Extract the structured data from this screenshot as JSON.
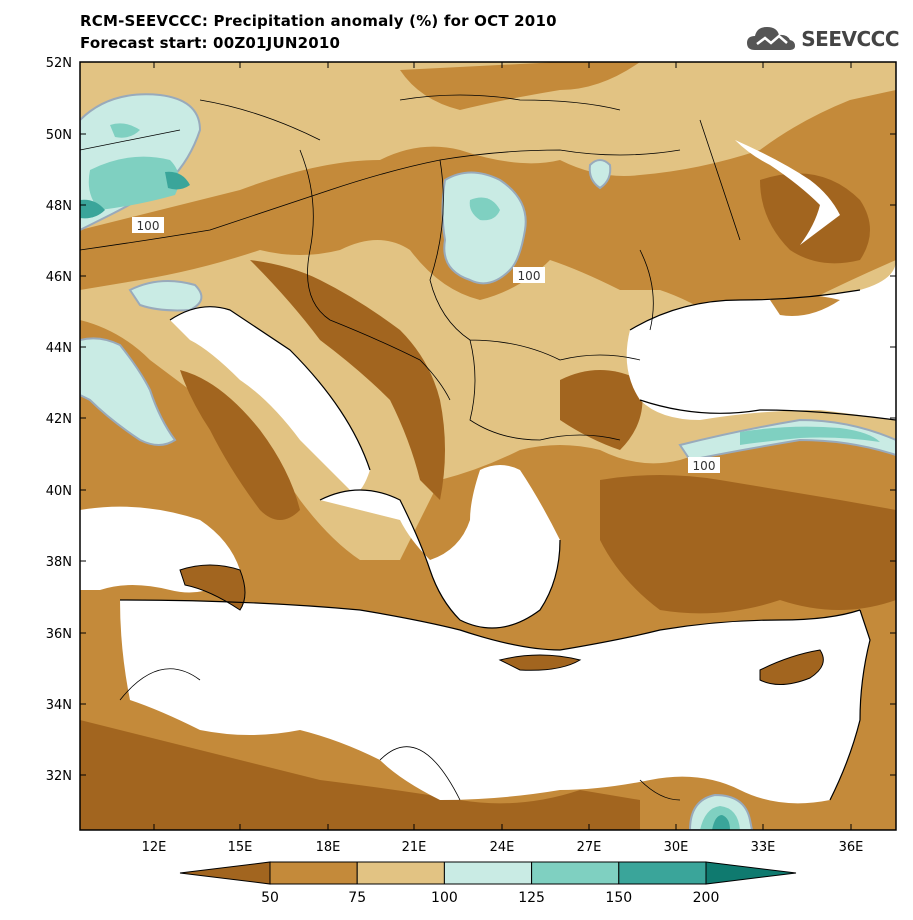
{
  "header": {
    "title_line1": "RCM-SEEVCCC: Precipitation anomaly (%) for OCT 2010",
    "title_line2": "Forecast start: 00Z01JUN2010",
    "logo_text": "SEEVCCC",
    "logo_icon": "cloud-icon"
  },
  "map": {
    "lat_labels": [
      "52N",
      "50N",
      "48N",
      "46N",
      "44N",
      "42N",
      "40N",
      "38N",
      "36N",
      "34N",
      "32N"
    ],
    "lon_labels": [
      "12E",
      "15E",
      "18E",
      "21E",
      "24E",
      "27E",
      "30E",
      "33E",
      "36E"
    ],
    "contour_labels": [
      "100",
      "100",
      "100"
    ],
    "sea_color": "#ffffff",
    "coast_color": "#000000"
  },
  "colorbar": {
    "labels": [
      "50",
      "75",
      "100",
      "125",
      "150",
      "200"
    ],
    "colors": [
      "#a2651f",
      "#c48a3a",
      "#e2c383",
      "#c9ebe4",
      "#7fd0c1",
      "#3aa59a",
      "#0f7a6f"
    ]
  }
}
